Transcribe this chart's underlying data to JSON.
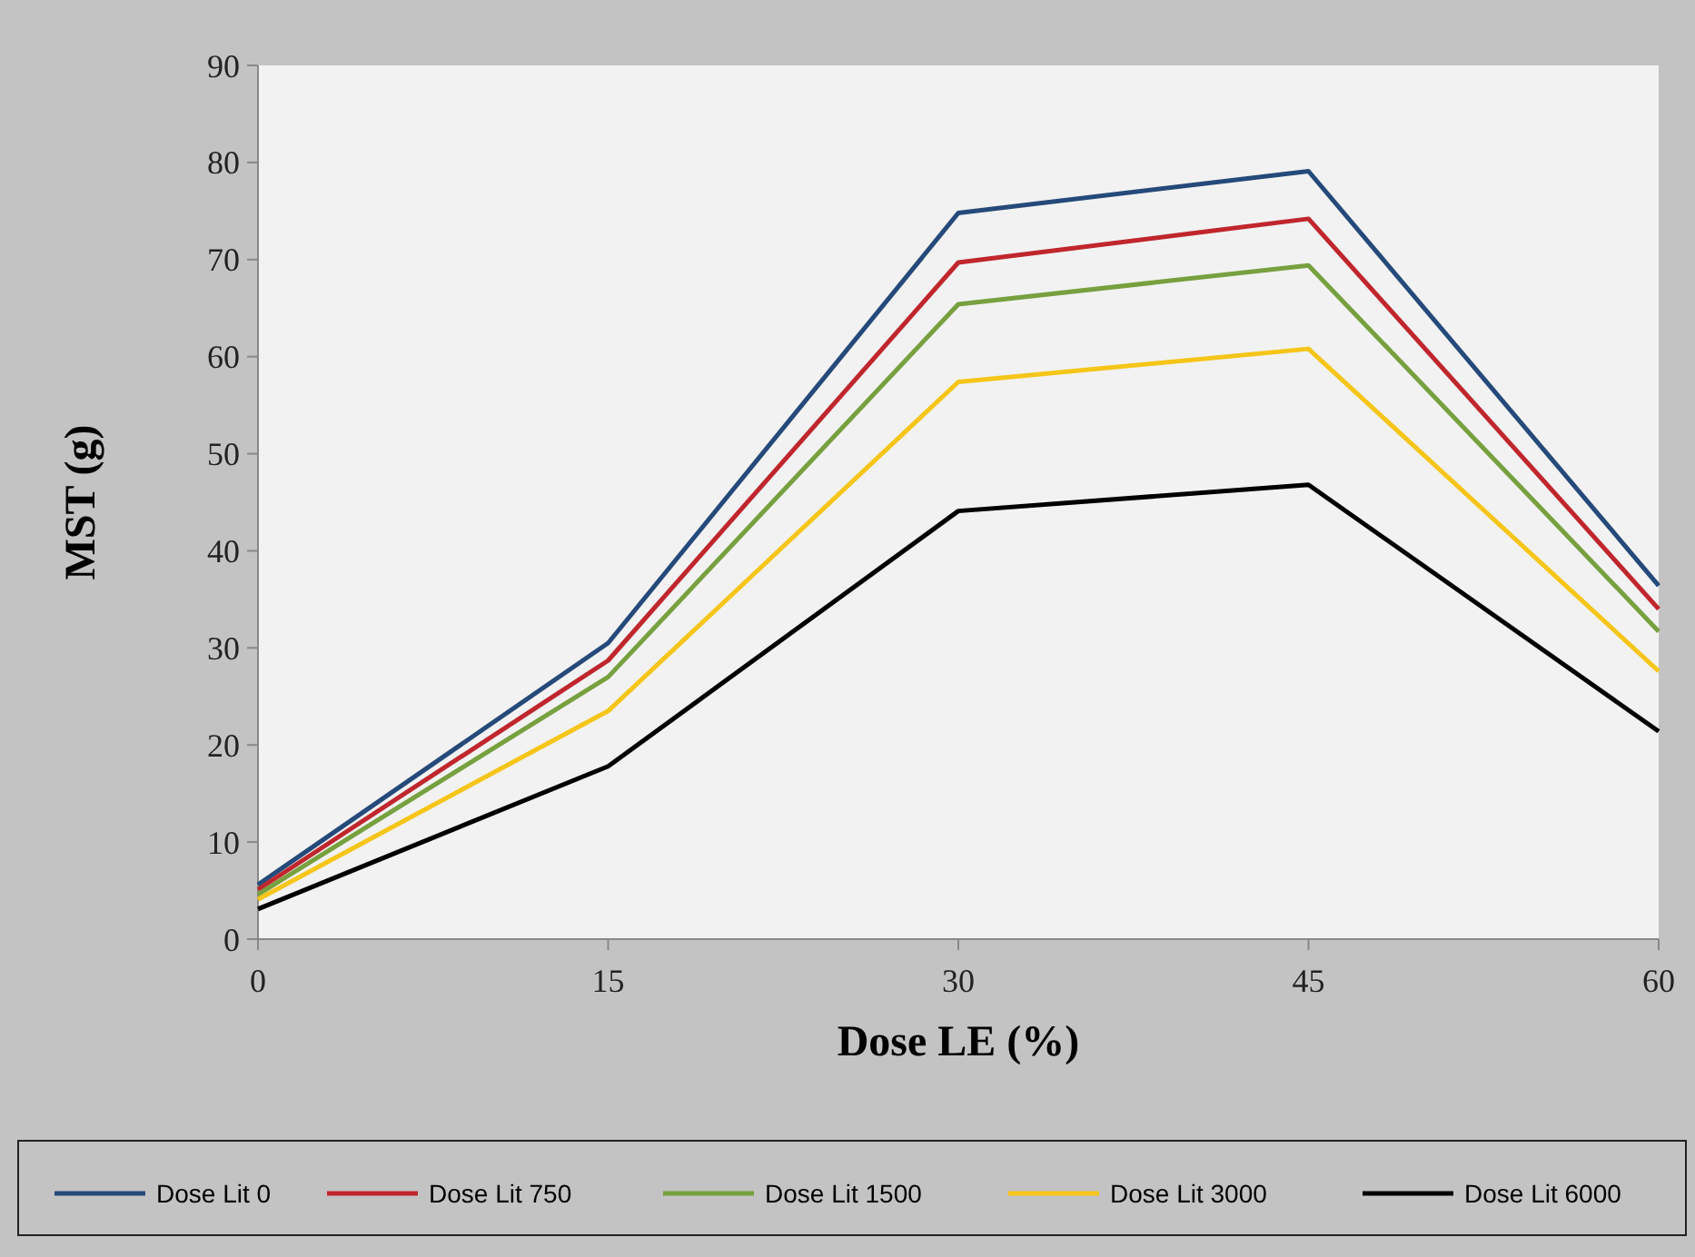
{
  "chart_data": {
    "type": "line",
    "xlabel": "Dose LE (%)",
    "ylabel": "MST (g)",
    "x": [
      0,
      15,
      30,
      45,
      60
    ],
    "xlim": [
      0,
      60
    ],
    "xticks": [
      0,
      15,
      30,
      45,
      60
    ],
    "ylim": [
      0,
      90
    ],
    "yticks": [
      0,
      10,
      20,
      30,
      40,
      50,
      60,
      70,
      80,
      90
    ],
    "grid": false,
    "legend": "bottom",
    "marker": "none",
    "line_style": "solid",
    "series": [
      {
        "name": "Dose Lit 0",
        "color": "#254a7a",
        "values": [
          5.6,
          30.5,
          74.8,
          79.1,
          36.4
        ]
      },
      {
        "name": "Dose Lit 750",
        "color": "#c0262d",
        "values": [
          5.1,
          28.7,
          69.7,
          74.2,
          34
        ]
      },
      {
        "name": "Dose Lit 1500",
        "color": "#77a03f",
        "values": [
          4.6,
          27,
          65.4,
          69.4,
          31.7
        ]
      },
      {
        "name": "Dose Lit 3000",
        "color": "#f5c518",
        "values": [
          4.1,
          23.5,
          57.4,
          60.8,
          27.6
        ]
      },
      {
        "name": "Dose Lit 6000",
        "color": "#000000",
        "values": [
          3.1,
          17.8,
          44.1,
          46.8,
          21.4
        ]
      }
    ]
  }
}
